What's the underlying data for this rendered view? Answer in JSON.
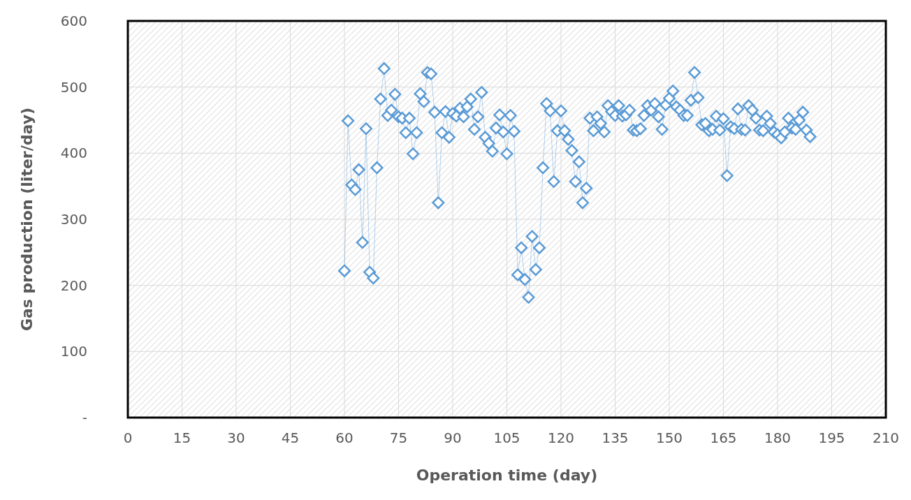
{
  "chart_data": {
    "type": "line",
    "xlabel": "Operation time (day)",
    "ylabel": "Gas production (liter/day)",
    "xlim": [
      0,
      210
    ],
    "xticks": [
      0,
      15,
      30,
      45,
      60,
      75,
      90,
      105,
      120,
      135,
      150,
      165,
      180,
      195,
      210
    ],
    "ylim": [
      0,
      600
    ],
    "yticks": [
      {
        "value": 0,
        "label": "-"
      },
      100,
      200,
      300,
      400,
      500,
      600
    ],
    "grid": true,
    "marker": "diamond",
    "line_style": "solid",
    "series": [
      {
        "color": "#5b9bd5",
        "x": [
          60,
          61,
          62,
          63,
          64,
          65,
          66,
          67,
          68,
          69,
          70,
          71,
          72,
          73,
          74,
          75,
          76,
          77,
          78,
          79,
          80,
          81,
          82,
          83,
          84,
          85,
          86,
          87,
          88,
          89,
          90,
          91,
          92,
          93,
          94,
          95,
          96,
          97,
          98,
          99,
          100,
          101,
          102,
          103,
          104,
          105,
          106,
          107,
          108,
          109,
          110,
          111,
          112,
          113,
          114,
          115,
          116,
          117,
          118,
          119,
          120,
          121,
          122,
          123,
          124,
          125,
          126,
          127,
          128,
          129,
          130,
          131,
          132,
          133,
          134,
          135,
          136,
          137,
          138,
          139,
          140,
          141,
          142,
          143,
          144,
          145,
          146,
          147,
          148,
          149,
          150,
          151,
          152,
          153,
          154,
          155,
          156,
          157,
          158,
          159,
          160,
          161,
          162,
          163,
          164,
          165,
          166,
          167,
          168,
          169,
          170,
          171,
          172,
          173,
          174,
          175,
          176,
          177,
          178,
          179,
          180,
          181,
          182,
          183,
          184,
          185,
          186,
          187,
          188,
          189
        ],
        "values": [
          222,
          449,
          352,
          345,
          375,
          265,
          437,
          220,
          211,
          378,
          482,
          528,
          457,
          465,
          489,
          455,
          453,
          431,
          453,
          399,
          431,
          490,
          478,
          522,
          520,
          462,
          325,
          431,
          463,
          424,
          460,
          456,
          468,
          455,
          470,
          482,
          436,
          455,
          492,
          424,
          415,
          403,
          438,
          458,
          432,
          399,
          457,
          433,
          216,
          257,
          209,
          182,
          274,
          224,
          257,
          378,
          475,
          464,
          357,
          434,
          464,
          434,
          421,
          404,
          357,
          387,
          325,
          347,
          453,
          434,
          455,
          445,
          432,
          472,
          463,
          457,
          472,
          456,
          458,
          465,
          435,
          434,
          437,
          457,
          472,
          465,
          475,
          455,
          436,
          473,
          483,
          494,
          470,
          465,
          457,
          457,
          480,
          522,
          484,
          443,
          445,
          434,
          436,
          456,
          435,
          452,
          366,
          440,
          437,
          467,
          436,
          435,
          472,
          465,
          453,
          435,
          434,
          456,
          445,
          432,
          428,
          423,
          432,
          453,
          438,
          436,
          450,
          462,
          435,
          425
        ]
      }
    ]
  }
}
